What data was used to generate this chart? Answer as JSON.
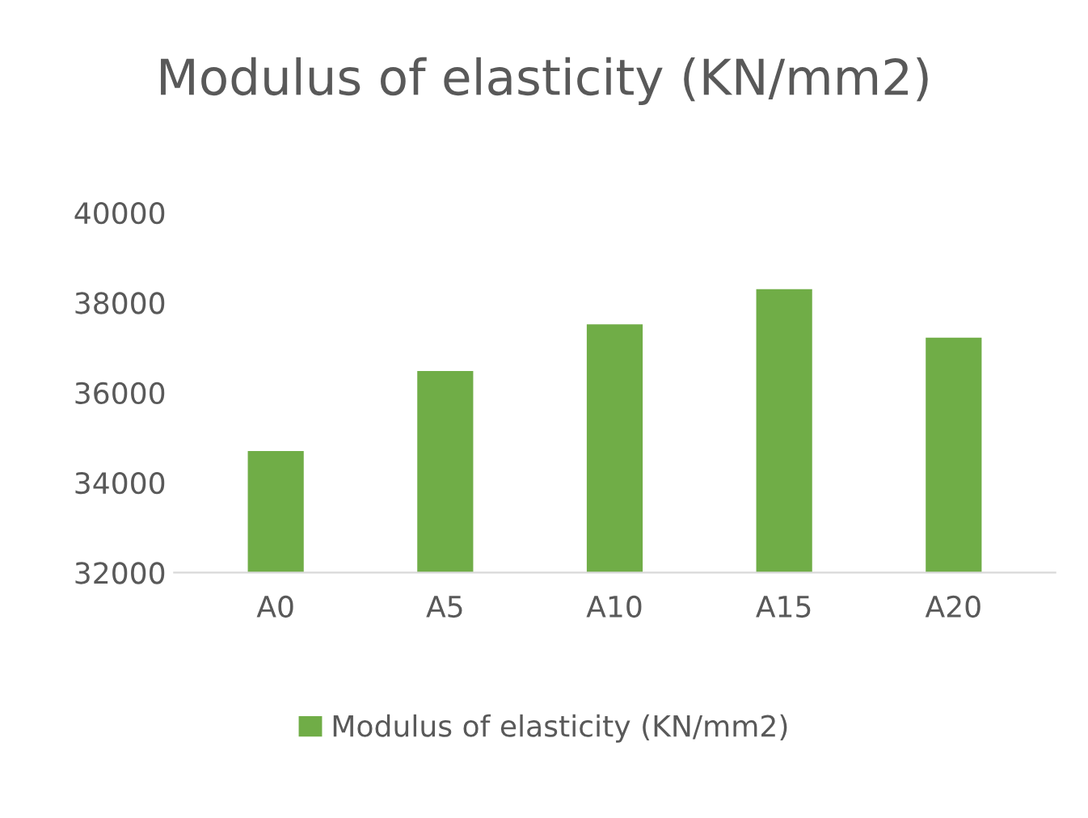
{
  "chart_data": {
    "type": "bar",
    "title": "Modulus of elasticity (KN/mm2)",
    "categories": [
      "A0",
      "A5",
      "A10",
      "A15",
      "A20"
    ],
    "series": [
      {
        "name": "Modulus of elasticity (KN/mm2)",
        "color": "#70ad47",
        "values": [
          34700,
          36480,
          37520,
          38300,
          37220
        ]
      }
    ],
    "ylim": [
      32000,
      40000
    ],
    "yticks": [
      32000,
      34000,
      36000,
      38000,
      40000
    ],
    "grid": false,
    "legend": "bottom"
  }
}
